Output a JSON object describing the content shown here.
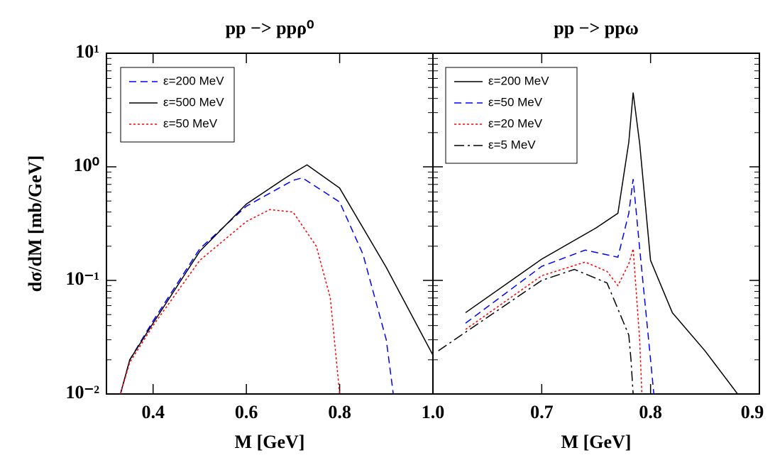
{
  "chart_data": [
    {
      "type": "line",
      "title": "pp −> ppρ⁰",
      "xlabel": "M [GeV]",
      "ylabel": "dσ/dM [mb/GeV]",
      "xlim": [
        0.3,
        1.0
      ],
      "xticks": [
        0.4,
        0.6,
        0.8,
        {
          "value": 1.0,
          "label": "1.0"
        }
      ],
      "ylim": [
        0.01,
        10
      ],
      "ylog": true,
      "yticks": [
        {
          "value": 0.01,
          "label": "10⁻²"
        },
        {
          "value": 0.1,
          "label": "10⁻¹"
        },
        {
          "value": 1,
          "label": "10⁰"
        },
        {
          "value": 10,
          "label": "10¹"
        }
      ],
      "legend": "upper left",
      "series": [
        {
          "name": "ε=200 MeV",
          "color": "#0000ff",
          "dash": "dashed",
          "x": [
            0.33,
            0.35,
            0.4,
            0.5,
            0.6,
            0.7,
            0.72,
            0.8,
            0.85,
            0.9,
            0.915
          ],
          "values": [
            0.01,
            0.02,
            0.044,
            0.19,
            0.45,
            0.76,
            0.8,
            0.49,
            0.17,
            0.03,
            0.01
          ]
        },
        {
          "name": "ε=500 MeV",
          "color": "#000000",
          "dash": "solid",
          "x": [
            0.33,
            0.35,
            0.4,
            0.5,
            0.6,
            0.68,
            0.7,
            0.73,
            0.8,
            0.9,
            1.0
          ],
          "values": [
            0.01,
            0.02,
            0.042,
            0.18,
            0.47,
            0.78,
            0.88,
            1.04,
            0.65,
            0.13,
            0.022
          ]
        },
        {
          "name": "ε=50 MeV",
          "color": "#ff0000",
          "dash": "dotted",
          "x": [
            0.33,
            0.35,
            0.4,
            0.5,
            0.6,
            0.65,
            0.7,
            0.75,
            0.78,
            0.8
          ],
          "values": [
            0.01,
            0.019,
            0.04,
            0.15,
            0.33,
            0.42,
            0.4,
            0.2,
            0.07,
            0.01
          ]
        }
      ]
    },
    {
      "type": "line",
      "title": "pp −> ppω",
      "xlabel": "M [GeV]",
      "xlim": [
        0.6,
        0.9
      ],
      "xticks": [
        0.7,
        0.8,
        0.9
      ],
      "ylim": [
        0.01,
        10
      ],
      "ylog": true,
      "legend": "upper left",
      "series": [
        {
          "name": "ε=200 MeV",
          "color": "#000000",
          "dash": "solid",
          "x": [
            0.63,
            0.7,
            0.75,
            0.77,
            0.78,
            0.784,
            0.79,
            0.8,
            0.82,
            0.85,
            0.88
          ],
          "values": [
            0.052,
            0.154,
            0.29,
            0.39,
            1.65,
            4.5,
            1.6,
            0.15,
            0.052,
            0.024,
            0.01
          ]
        },
        {
          "name": "ε=50 MeV",
          "color": "#0000ff",
          "dash": "dashed",
          "x": [
            0.63,
            0.7,
            0.74,
            0.77,
            0.78,
            0.784,
            0.79,
            0.8,
            0.803
          ],
          "values": [
            0.042,
            0.133,
            0.185,
            0.16,
            0.39,
            0.78,
            0.19,
            0.02,
            0.01
          ]
        },
        {
          "name": "ε=20 MeV",
          "color": "#ff0000",
          "dash": "dotted",
          "x": [
            0.63,
            0.7,
            0.74,
            0.76,
            0.77,
            0.78,
            0.784,
            0.79,
            0.792
          ],
          "values": [
            0.037,
            0.11,
            0.145,
            0.12,
            0.09,
            0.14,
            0.19,
            0.03,
            0.01
          ]
        },
        {
          "name": "ε=5 MeV",
          "color": "#000000",
          "dash": "dashdot",
          "x": [
            0.605,
            0.63,
            0.7,
            0.73,
            0.76,
            0.78,
            0.782,
            0.784
          ],
          "values": [
            0.024,
            0.035,
            0.1,
            0.125,
            0.095,
            0.033,
            0.02,
            0.01
          ]
        }
      ]
    }
  ]
}
